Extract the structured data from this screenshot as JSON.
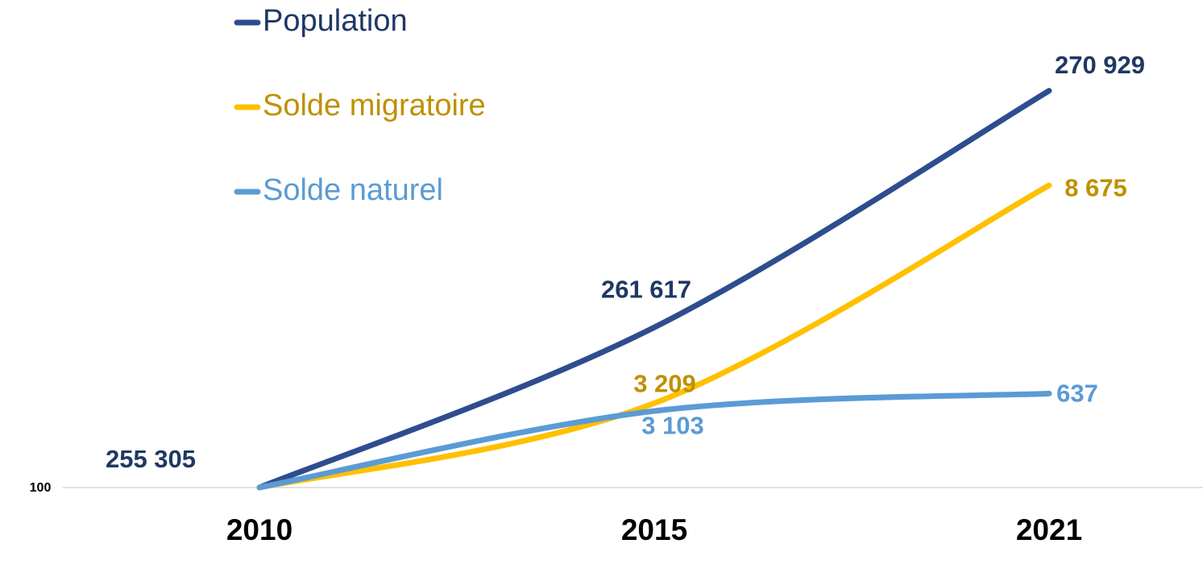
{
  "chart_data": {
    "type": "line",
    "categories": [
      "2010",
      "2015",
      "2021"
    ],
    "ylim": [
      100,
      106.6
    ],
    "yticks": [
      100
    ],
    "series": [
      {
        "name": "Population",
        "color": "#2e4d8f",
        "label_color": "#1f3864",
        "values": [
          100,
          102.47,
          106.12
        ],
        "point_labels": [
          "255 305",
          "261 617",
          "270 929"
        ]
      },
      {
        "name": "Solde migratoire",
        "color": "#ffc000",
        "label_color": "#bf9000",
        "values": [
          100,
          101.3,
          104.66
        ],
        "point_labels": [
          null,
          "3 209",
          "8 675"
        ]
      },
      {
        "name": "Solde naturel",
        "color": "#5b9bd5",
        "label_color": "#5b9bd5",
        "values": [
          100,
          101.18,
          101.45
        ],
        "point_labels": [
          null,
          "3 103",
          "637"
        ]
      }
    ]
  }
}
